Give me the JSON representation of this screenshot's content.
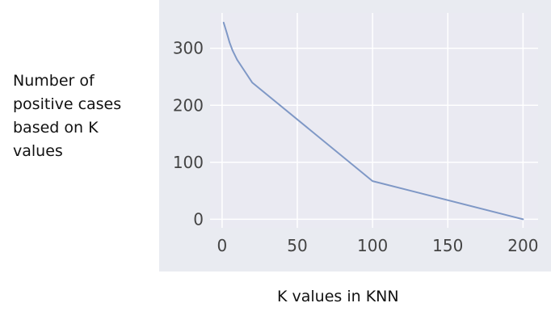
{
  "ylabel_lines": [
    "Number of",
    "positive cases",
    "based on K",
    "values"
  ],
  "chart_data": {
    "type": "line",
    "title": "",
    "xlabel": "K values in KNN",
    "ylabel": "Number of positive cases based on K values",
    "xlim": [
      -8,
      210
    ],
    "ylim": [
      -15,
      362
    ],
    "xticks": [
      0,
      50,
      100,
      150,
      200
    ],
    "yticks": [
      0,
      100,
      200,
      300
    ],
    "grid": true,
    "series": [
      {
        "color": "#7f98c6",
        "x": [
          1,
          3,
          5,
          7,
          10,
          15,
          20,
          100,
          200
        ],
        "y": [
          345,
          328,
          310,
          296,
          280,
          260,
          240,
          67,
          0
        ]
      }
    ]
  }
}
